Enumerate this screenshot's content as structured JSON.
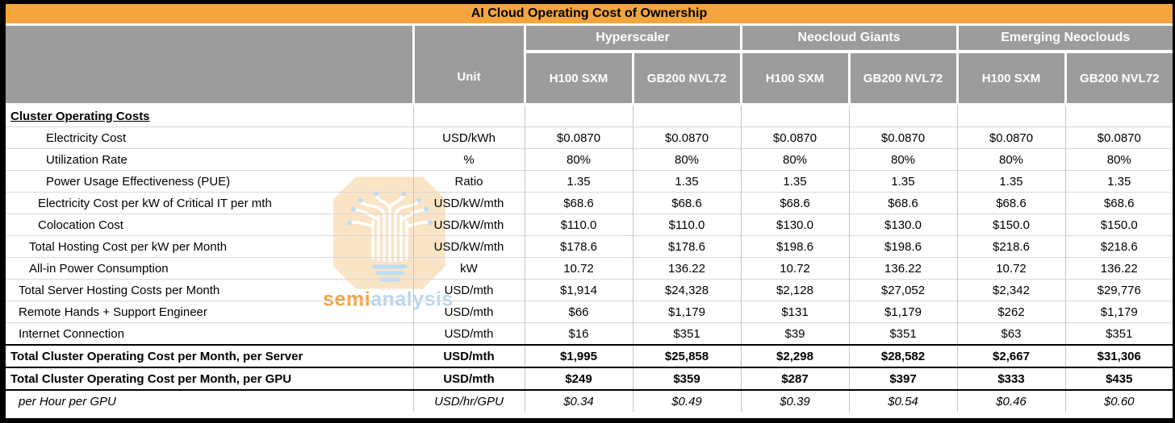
{
  "chart_data": {
    "type": "table",
    "title": "AI Cloud Operating Cost of Ownership",
    "unit_header": "Unit",
    "column_groups": [
      {
        "label": "Hyperscaler",
        "columns": [
          "H100 SXM",
          "GB200 NVL72"
        ]
      },
      {
        "label": "Neocloud Giants",
        "columns": [
          "H100 SXM",
          "GB200 NVL72"
        ]
      },
      {
        "label": "Emerging Neoclouds",
        "columns": [
          "H100 SXM",
          "GB200 NVL72"
        ]
      }
    ],
    "rows": [
      {
        "label": "Cluster Operating Costs",
        "unit": "",
        "style": "section",
        "indent": 0,
        "values": [
          "",
          "",
          "",
          "",
          "",
          ""
        ]
      },
      {
        "label": "Electricity Cost",
        "unit": "USD/kWh",
        "style": "normal",
        "indent": 4,
        "values": [
          "$0.0870",
          "$0.0870",
          "$0.0870",
          "$0.0870",
          "$0.0870",
          "$0.0870"
        ]
      },
      {
        "label": "Utilization Rate",
        "unit": "%",
        "style": "normal",
        "indent": 4,
        "values": [
          "80%",
          "80%",
          "80%",
          "80%",
          "80%",
          "80%"
        ]
      },
      {
        "label": "Power Usage Effectiveness (PUE)",
        "unit": "Ratio",
        "style": "normal",
        "indent": 4,
        "values": [
          "1.35",
          "1.35",
          "1.35",
          "1.35",
          "1.35",
          "1.35"
        ]
      },
      {
        "label": "Electricity Cost per kW of Critical IT per mth",
        "unit": "USD/kW/mth",
        "style": "normal",
        "indent": 3,
        "values": [
          "$68.6",
          "$68.6",
          "$68.6",
          "$68.6",
          "$68.6",
          "$68.6"
        ]
      },
      {
        "label": "Colocation Cost",
        "unit": "USD/kW/mth",
        "style": "normal",
        "indent": 3,
        "values": [
          "$110.0",
          "$110.0",
          "$130.0",
          "$130.0",
          "$150.0",
          "$150.0"
        ]
      },
      {
        "label": "Total Hosting Cost per kW per Month",
        "unit": "USD/kW/mth",
        "style": "normal",
        "indent": 2,
        "values": [
          "$178.6",
          "$178.6",
          "$198.6",
          "$198.6",
          "$218.6",
          "$218.6"
        ]
      },
      {
        "label": "All-in Power Consumption",
        "unit": "kW",
        "style": "normal",
        "indent": 2,
        "values": [
          "10.72",
          "136.22",
          "10.72",
          "136.22",
          "10.72",
          "136.22"
        ]
      },
      {
        "label": "Total Server Hosting Costs per Month",
        "unit": "USD/mth",
        "style": "normal",
        "indent": 1,
        "values": [
          "$1,914",
          "$24,328",
          "$2,128",
          "$27,052",
          "$2,342",
          "$29,776"
        ]
      },
      {
        "label": "Remote Hands + Support Engineer",
        "unit": "USD/mth",
        "style": "normal",
        "indent": 1,
        "values": [
          "$66",
          "$1,179",
          "$131",
          "$1,179",
          "$262",
          "$1,179"
        ]
      },
      {
        "label": "Internet Connection",
        "unit": "USD/mth",
        "style": "normal",
        "indent": 1,
        "values": [
          "$16",
          "$351",
          "$39",
          "$351",
          "$63",
          "$351"
        ]
      },
      {
        "label": "Total Cluster Operating Cost per Month, per Server",
        "unit": "USD/mth",
        "style": "total",
        "indent": 0,
        "values": [
          "$1,995",
          "$25,858",
          "$2,298",
          "$28,582",
          "$2,667",
          "$31,306"
        ]
      },
      {
        "label": "Total Cluster Operating Cost per Month, per GPU",
        "unit": "USD/mth",
        "style": "total",
        "indent": 0,
        "values": [
          "$249",
          "$359",
          "$287",
          "$397",
          "$333",
          "$435"
        ]
      },
      {
        "label": "per Hour per GPU",
        "unit": "USD/hr/GPU",
        "style": "hours",
        "indent": 1,
        "values": [
          "$0.34",
          "$0.49",
          "$0.39",
          "$0.54",
          "$0.46",
          "$0.60"
        ]
      }
    ]
  },
  "watermark": {
    "brand_prefix": "semi",
    "brand_suffix": "analysis"
  },
  "colors": {
    "title_bg": "#F5A53D",
    "header_bg": "#9C9C9C",
    "header_text": "#FFFFFF",
    "grid_line": "#C4C4C4",
    "total_border": "#000000",
    "watermark_peach": "#FAE4C6",
    "watermark_orange": "#F2A444",
    "watermark_blue": "#B9D6F0"
  }
}
